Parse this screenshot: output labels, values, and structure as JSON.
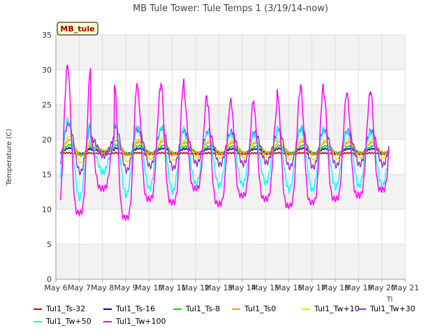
{
  "chart_data": {
    "type": "line",
    "title": "MB Tule Tower: Tule Temps 1 (3/19/14-now)",
    "station_badge": "MB_tule",
    "ylabel": "Temperature (C)",
    "xlabel": "",
    "xlabel_fragment": "Ti",
    "ylim": [
      0,
      35
    ],
    "yticks": [
      0,
      5,
      10,
      15,
      20,
      25,
      30,
      35
    ],
    "xticks": [
      "May 6",
      "May 7",
      "May 8",
      "May 9",
      "May 10",
      "May 11",
      "May 12",
      "May 13",
      "May 14",
      "May 15",
      "May 16",
      "May 17",
      "May 18",
      "May 19",
      "May 20",
      "May 21"
    ],
    "xlim_days": [
      6,
      21
    ],
    "grid": true,
    "alternating_bands": true,
    "legend_position": "bottom",
    "series": [
      {
        "name": "Tul1_Ts-32",
        "color": "#d40000",
        "mean": 18.0,
        "amp": 0.1,
        "peak": 0.55,
        "base_days": [
          6.2,
          20.3
        ]
      },
      {
        "name": "Tul1_Ts-16",
        "color": "#0000cc",
        "mean": 18.4,
        "amp": 0.35,
        "peak": 0.6,
        "base_days": [
          6.2,
          20.3
        ]
      },
      {
        "name": "Tul1_Ts-8",
        "color": "#00dd00",
        "mean": 18.6,
        "amp": 0.6,
        "peak": 0.62,
        "base_days": [
          6.2,
          20.3
        ]
      },
      {
        "name": "Tul1_Ts0",
        "color": "#ff9900",
        "mean": 18.8,
        "amp": 1.0,
        "peak": 0.6,
        "base_days": [
          6.2,
          20.3
        ]
      },
      {
        "name": "Tul1_Tw+10",
        "color": "#e8e800",
        "mean": 18.6,
        "amp": 1.6,
        "peak": 0.58,
        "base_days": [
          6.2,
          20.3
        ]
      },
      {
        "name": "Tul1_Tw+30",
        "color": "#9933cc",
        "mean": 18.8,
        "amp": 3.0,
        "peak": 0.55,
        "base_days": [
          6.2,
          20.3
        ]
      },
      {
        "name": "Tul1_Tw+50",
        "color": "#00ffff",
        "mean": 17.2,
        "amp": 4.8,
        "peak": 0.52,
        "base_days": [
          6.2,
          20.3
        ]
      },
      {
        "name": "Tul1_Tw+100",
        "color": "#ff00ff",
        "mean": 17.0,
        "amp": 7.5,
        "peak": 0.5,
        "base_days": [
          6.2,
          20.3
        ]
      }
    ],
    "daily_peaks_tw100": [
      {
        "day": 7.0,
        "max": 30.5,
        "min": 9.5
      },
      {
        "day": 8.0,
        "max": 20.2,
        "min": 13.0
      },
      {
        "day": 9.0,
        "max": 28.3,
        "min": 8.8
      },
      {
        "day": 10.0,
        "max": 27.3,
        "min": 11.5
      },
      {
        "day": 11.0,
        "max": 28.4,
        "min": 11.0
      },
      {
        "day": 12.0,
        "max": 26.5,
        "min": 13.0
      },
      {
        "day": 13.0,
        "max": 25.2,
        "min": 10.8
      },
      {
        "day": 14.0,
        "max": 25.8,
        "min": 12.0
      },
      {
        "day": 15.0,
        "max": 24.3,
        "min": 11.5
      },
      {
        "day": 16.0,
        "max": 27.1,
        "min": 10.5
      },
      {
        "day": 17.0,
        "max": 27.8,
        "min": 11.0
      },
      {
        "day": 18.0,
        "max": 26.8,
        "min": 11.5
      },
      {
        "day": 19.0,
        "max": 26.5,
        "min": 12.0
      },
      {
        "day": 20.0,
        "max": 27.3,
        "min": 12.8
      }
    ]
  }
}
